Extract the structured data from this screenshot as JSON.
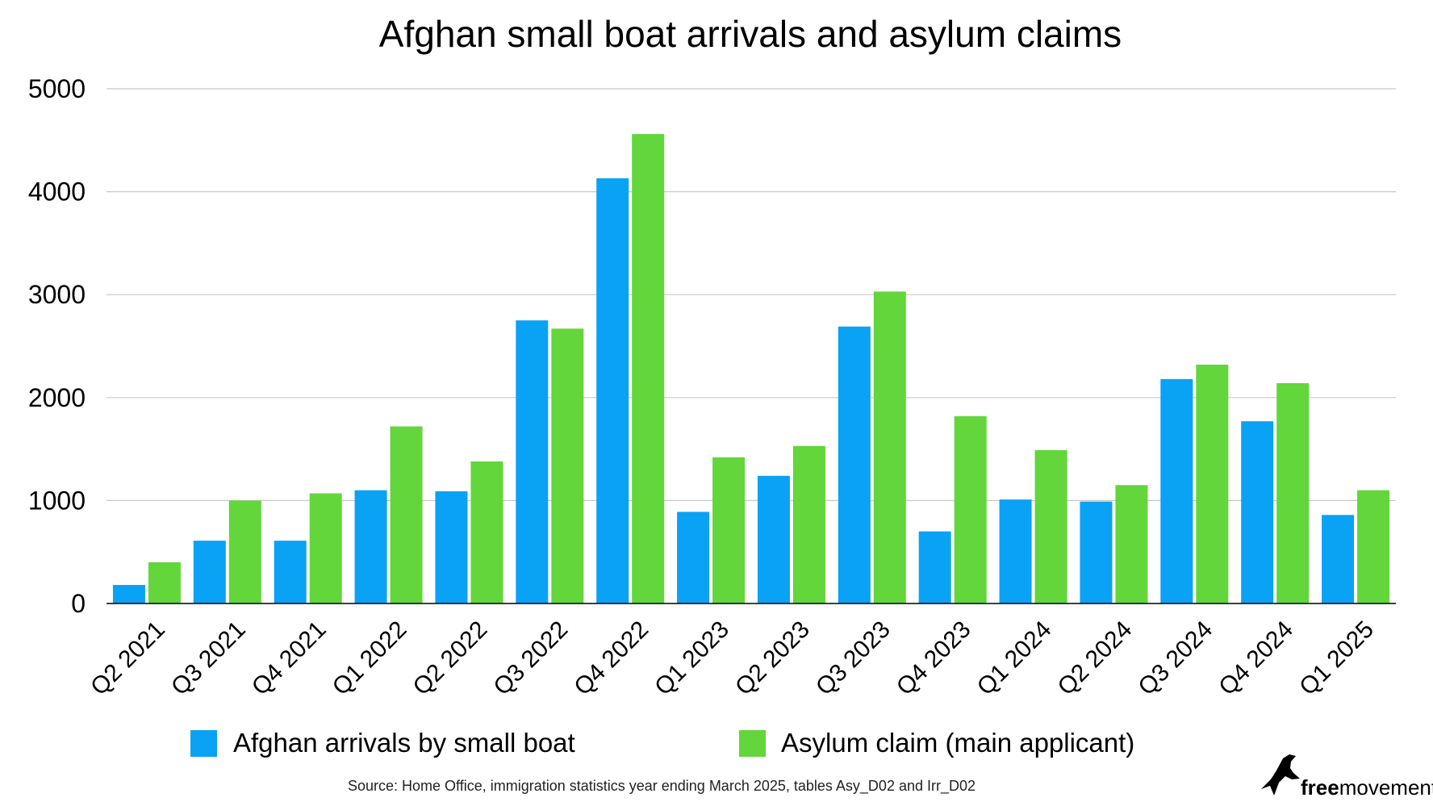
{
  "chart_data": {
    "type": "bar",
    "title": "Afghan small boat arrivals and asylum claims",
    "xlabel": "",
    "ylabel": "",
    "ylim": [
      0,
      5000
    ],
    "yticks": [
      0,
      1000,
      2000,
      3000,
      4000,
      5000
    ],
    "grid": true,
    "legend_position": "bottom",
    "categories": [
      "Q2 2021",
      "Q3 2021",
      "Q4 2021",
      "Q1 2022",
      "Q2 2022",
      "Q3 2022",
      "Q4 2022",
      "Q1 2023",
      "Q2 2023",
      "Q3 2023",
      "Q4 2023",
      "Q1 2024",
      "Q2 2024",
      "Q3 2024",
      "Q4 2024",
      "Q1 2025"
    ],
    "series": [
      {
        "name": "Afghan arrivals by small boat",
        "color": "#0aa2f5",
        "values": [
          180,
          610,
          610,
          1100,
          1090,
          2750,
          4130,
          890,
          1240,
          2690,
          700,
          1010,
          990,
          2180,
          1770,
          860
        ]
      },
      {
        "name": "Asylum claim (main applicant)",
        "color": "#62d63b",
        "values": [
          400,
          1000,
          1070,
          1720,
          1380,
          2670,
          4560,
          1420,
          1530,
          3030,
          1820,
          1490,
          1150,
          2320,
          2140,
          1100
        ]
      }
    ],
    "source": "Source: Home Office, immigration statistics year ending March 2025, tables Asy_D02 and  Irr_D02"
  },
  "brand": {
    "bold": "free",
    "light": "movement",
    "icon": "bird-logo-icon"
  }
}
